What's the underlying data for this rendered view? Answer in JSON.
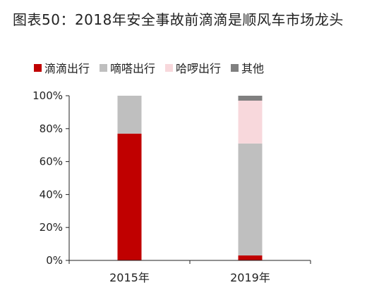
{
  "header": {
    "title": "图表50：2018年安全事故前滴滴是顺风车市场龙头"
  },
  "chart_data": {
    "type": "bar",
    "stacked": true,
    "title": "图表50：2018年安全事故前滴滴是顺风车市场龙头",
    "categories": [
      "2015年",
      "2019年"
    ],
    "ylim": [
      0,
      100
    ],
    "yticks": [
      "0%",
      "20%",
      "40%",
      "60%",
      "80%",
      "100%"
    ],
    "legend_position": "top",
    "series": [
      {
        "name": "滴滴出行",
        "color": "#c00000",
        "values": [
          77,
          3
        ]
      },
      {
        "name": "嘀嗒出行",
        "color": "#bfbfbf",
        "values": [
          23,
          68
        ]
      },
      {
        "name": "哈啰出行",
        "color": "#f8d8dc",
        "values": [
          0,
          26
        ]
      },
      {
        "name": "其他",
        "color": "#808080",
        "values": [
          0,
          3
        ]
      }
    ]
  }
}
